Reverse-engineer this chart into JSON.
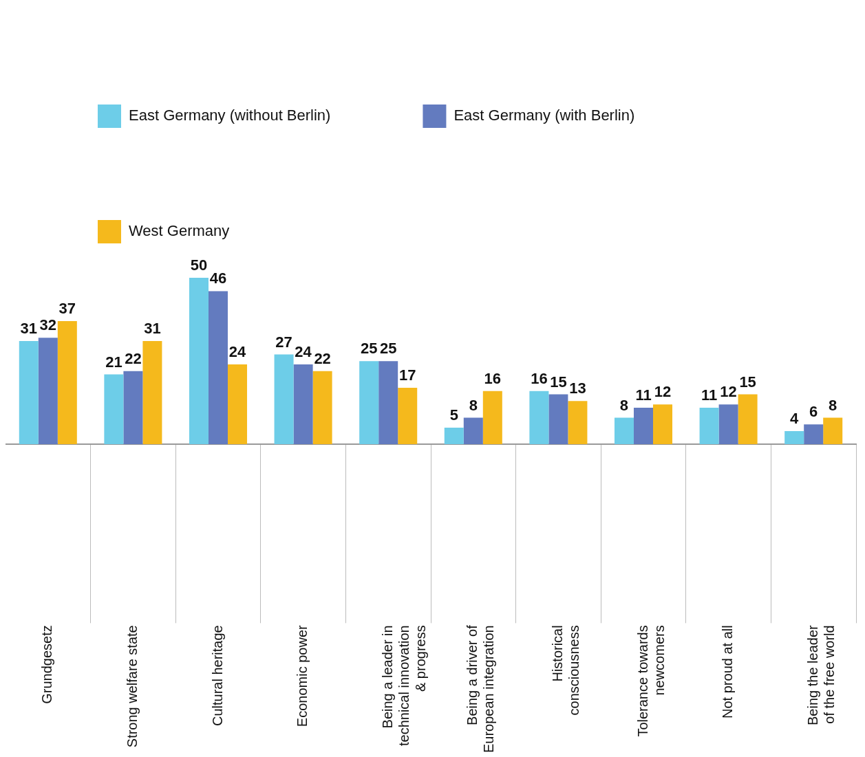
{
  "chart_data": {
    "type": "bar",
    "categories": [
      "Grundgesetz",
      "Strong welfare state",
      "Cultural heritage",
      "Economic power",
      "Being a leader in\ntechnical innovation\n& progress",
      "Being a driver of\nEuropean integration",
      "Historical\nconsciousness",
      "Tolerance towards\nnewcomers",
      "Not proud at all",
      "Being the leader\nof the free world"
    ],
    "series": [
      {
        "name": "East Germany (without Berlin)",
        "color": "#6dcde8",
        "values": [
          31,
          21,
          50,
          27,
          25,
          5,
          16,
          8,
          11,
          4
        ]
      },
      {
        "name": "East Germany (with Berlin)",
        "color": "#637bbf",
        "values": [
          32,
          22,
          46,
          24,
          25,
          8,
          15,
          11,
          12,
          6
        ]
      },
      {
        "name": "West Germany",
        "color": "#f5b91c",
        "values": [
          37,
          31,
          24,
          22,
          17,
          16,
          13,
          12,
          15,
          8
        ]
      }
    ],
    "data_labels": true,
    "legend": "top",
    "grid": false
  }
}
